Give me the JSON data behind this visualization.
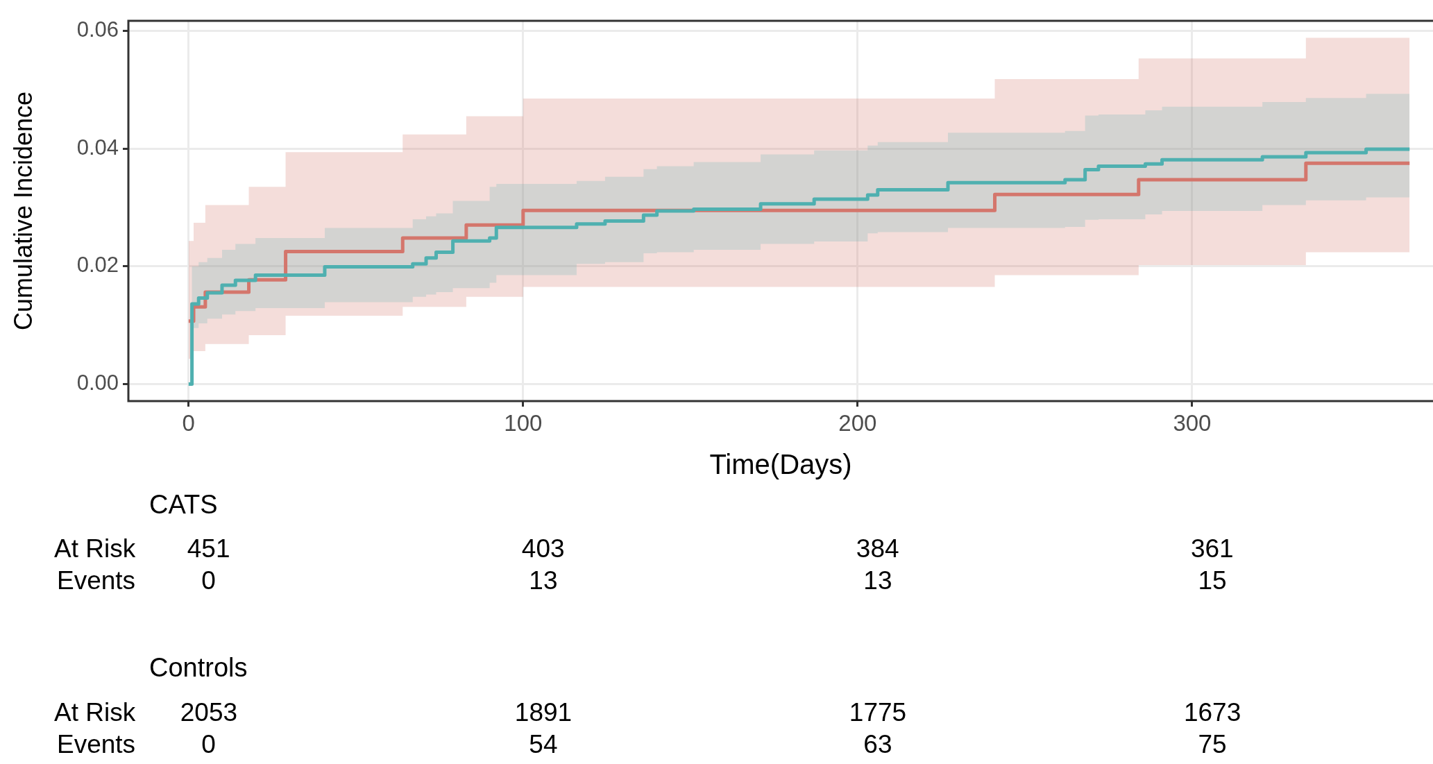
{
  "chart_data": {
    "type": "step",
    "xlabel": "Time(Days)",
    "ylabel": "Cumulative Incidence",
    "xlim": [
      -18,
      372
    ],
    "ylim": [
      -0.0029,
      0.0617
    ],
    "xticks": [
      0,
      100,
      200,
      300
    ],
    "yticks": [
      {
        "value": 0,
        "label": "0.00"
      },
      {
        "value": 0.02,
        "label": "0.02"
      },
      {
        "value": 0.04,
        "label": "0.04"
      },
      {
        "value": 0.06,
        "label": "0.06"
      }
    ],
    "grid": true,
    "series": [
      {
        "color": "#d4766c",
        "x": [
          0,
          1.5,
          5,
          18,
          29,
          64,
          83,
          100,
          241,
          284,
          334,
          365
        ],
        "values": [
          0.0107,
          0.0131,
          0.0156,
          0.0177,
          0.0225,
          0.0248,
          0.027,
          0.0295,
          0.0322,
          0.0347,
          0.0375,
          0.0375
        ],
        "upper": [
          0.0243,
          0.0274,
          0.0304,
          0.0335,
          0.0394,
          0.0424,
          0.0455,
          0.0485,
          0.0518,
          0.0553,
          0.0588,
          0.0588
        ],
        "lower": [
          0.0043,
          0.0056,
          0.0068,
          0.0083,
          0.0116,
          0.0131,
          0.0148,
          0.0165,
          0.0185,
          0.0202,
          0.0224,
          0.0224
        ]
      },
      {
        "color": "#4fb0b0",
        "x": [
          0,
          1,
          3,
          5.6,
          10,
          14,
          20,
          40.7,
          67,
          71,
          74,
          79,
          90,
          92,
          116,
          124.5,
          136,
          140,
          151,
          171,
          187,
          203,
          206,
          227,
          262,
          268,
          272,
          286,
          291,
          321,
          334,
          352,
          365
        ],
        "values": [
          0,
          0.0136,
          0.0146,
          0.0155,
          0.0168,
          0.0176,
          0.0185,
          0.0199,
          0.0204,
          0.0214,
          0.0224,
          0.0243,
          0.0248,
          0.0266,
          0.0272,
          0.0277,
          0.0287,
          0.0294,
          0.0297,
          0.0306,
          0.0314,
          0.0321,
          0.033,
          0.0342,
          0.0347,
          0.0364,
          0.037,
          0.0374,
          0.0381,
          0.0386,
          0.0393,
          0.0399,
          0.0399
        ],
        "upper": [
          0,
          0.02,
          0.0207,
          0.0214,
          0.0228,
          0.0238,
          0.0248,
          0.0265,
          0.028,
          0.0285,
          0.029,
          0.0311,
          0.0335,
          0.034,
          0.0345,
          0.0352,
          0.0365,
          0.037,
          0.0377,
          0.039,
          0.0397,
          0.0405,
          0.0411,
          0.0427,
          0.043,
          0.0456,
          0.0458,
          0.0465,
          0.0471,
          0.0479,
          0.0486,
          0.0493,
          0.0493
        ],
        "lower": [
          0,
          0.0095,
          0.0103,
          0.0111,
          0.0118,
          0.0124,
          0.0129,
          0.0139,
          0.0148,
          0.0152,
          0.0156,
          0.0163,
          0.0172,
          0.0185,
          0.0204,
          0.0207,
          0.0222,
          0.0224,
          0.0228,
          0.0238,
          0.0242,
          0.0256,
          0.0258,
          0.0265,
          0.0267,
          0.0279,
          0.028,
          0.0288,
          0.0294,
          0.0304,
          0.0312,
          0.0317,
          0.0317
        ]
      }
    ],
    "annotations": [
      "CATS",
      "At Risk",
      "451",
      "403",
      "384",
      "361",
      "Events",
      "0",
      "13",
      "13",
      "15",
      "Controls",
      "At Risk",
      "2053",
      "1891",
      "1775",
      "1673",
      "Events",
      "0",
      "54",
      "63",
      "75"
    ]
  }
}
